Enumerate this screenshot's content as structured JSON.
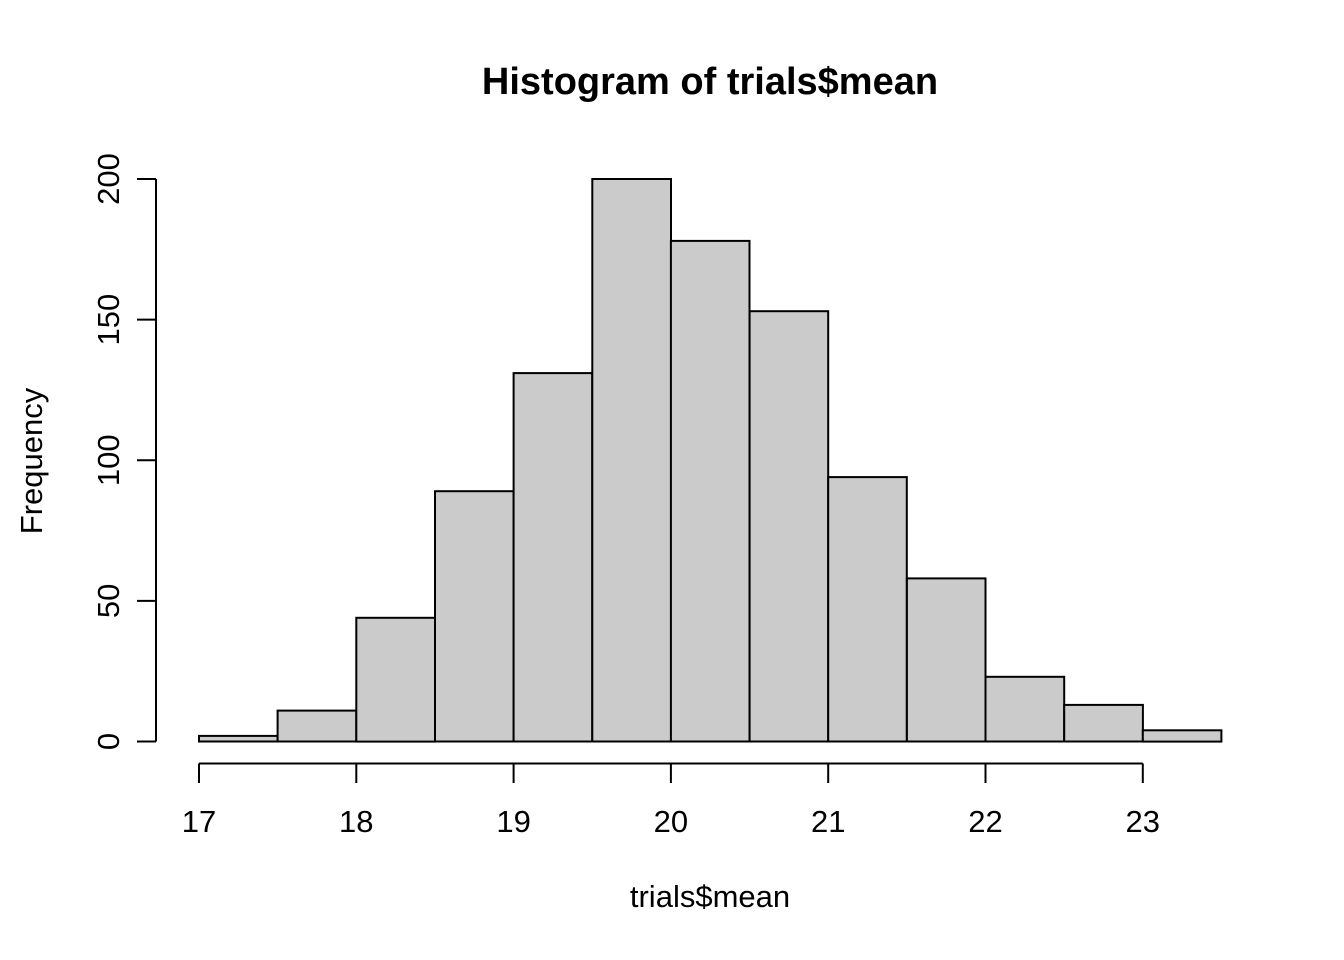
{
  "figure": {
    "title": "Histogram of trials$mean",
    "x_axis_label": "trials$mean",
    "y_axis_label": "Frequency"
  },
  "chart_data": {
    "type": "bar",
    "subtype": "histogram",
    "title": "Histogram of trials$mean",
    "xlabel": "trials$mean",
    "ylabel": "Frequency",
    "bin_start": 17,
    "bin_width": 0.5,
    "breaks": [
      17,
      17.5,
      18,
      18.5,
      19,
      19.5,
      20,
      20.5,
      21,
      21.5,
      22,
      22.5,
      23,
      23.5
    ],
    "counts": [
      2,
      11,
      44,
      89,
      131,
      200,
      178,
      153,
      94,
      58,
      23,
      13,
      4
    ],
    "total_observations": 1000,
    "x_ticks": [
      17,
      18,
      19,
      20,
      21,
      22,
      23
    ],
    "y_ticks": [
      0,
      50,
      100,
      150,
      200
    ],
    "xlim": [
      17,
      23.5
    ],
    "ylim": [
      0,
      200
    ],
    "grid": false,
    "legend": false,
    "colors": {
      "bar_fill": "#cbcbcb",
      "bar_stroke": "#000000",
      "axis": "#000000",
      "background": "#ffffff"
    }
  }
}
